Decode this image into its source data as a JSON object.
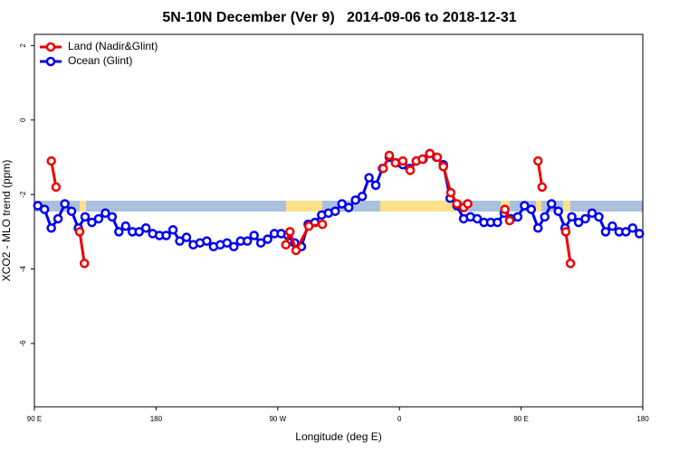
{
  "chart_data": {
    "type": "line",
    "title": "5N-10N December (Ver 9)   2014-09-06 to 2018-12-31",
    "x_label": "Longitude (deg E)",
    "y_label": "XCO2 - MLO trend (ppm)",
    "xlim": [
      90,
      540
    ],
    "xticks": [
      {
        "value": 90,
        "label": "90 E"
      },
      180,
      {
        "value": 270,
        "label": "90 W"
      },
      {
        "value": 360,
        "label": "0"
      },
      {
        "value": 450,
        "label": "90 E"
      },
      {
        "value": 540,
        "label": "180"
      }
    ],
    "ylim": [
      -7.7,
      2.3
    ],
    "yticks": [
      2,
      0,
      -2,
      -4,
      -6
    ],
    "legend": "top-left",
    "series": [
      {
        "name": "Land (Nadir&Glint)",
        "color": "#ee0000",
        "x": [
          102.5,
          106,
          null,
          123.5,
          127,
          null,
          276,
          279,
          283.5,
          293,
          303,
          null,
          348,
          352.5,
          357,
          362.5,
          368,
          372.5,
          377,
          382.5,
          388,
          392.5,
          398,
          402.5,
          407.5,
          410.5,
          null,
          438,
          441.5,
          null,
          462.5,
          465.5,
          null,
          483,
          486.5
        ],
        "values": [
          -1.1,
          -1.8,
          null,
          -3.0,
          -3.85,
          null,
          -3.35,
          -3.0,
          -3.5,
          -2.85,
          -2.8,
          null,
          -1.3,
          -0.95,
          -1.15,
          -1.1,
          -1.35,
          -1.1,
          -1.05,
          -0.9,
          -1.0,
          -1.25,
          -1.95,
          -2.25,
          -2.35,
          -2.25,
          null,
          -2.4,
          -2.7,
          null,
          -1.1,
          -1.8,
          null,
          -3.0,
          -3.85
        ]
      },
      {
        "name": "Ocean (Glint)",
        "color": "#0000ee",
        "x": [
          92.5,
          97.5,
          102.5,
          107.5,
          112.5,
          117.5,
          122.5,
          127.5,
          132.5,
          137.5,
          142.5,
          147.5,
          152.5,
          157.5,
          162.5,
          167.5,
          172.5,
          177.5,
          182.5,
          187.5,
          192.5,
          197.5,
          202.5,
          207.5,
          212.5,
          217.5,
          222.5,
          227.5,
          232.5,
          237.5,
          242.5,
          247.5,
          252.5,
          257.5,
          262.5,
          267.5,
          272.5,
          277.5,
          282.5,
          287.5,
          292.5,
          297.5,
          302.5,
          307.5,
          312.5,
          317.5,
          322.5,
          327.5,
          332.5,
          337.5,
          342.5,
          347.5,
          352.5,
          357.5,
          362.5,
          367.5,
          372.5,
          377.5,
          382.5,
          387.5,
          392.5,
          397.5,
          402.5,
          407.5,
          412.5,
          417.5,
          422.5,
          427.5,
          432.5,
          437.5,
          442.5,
          447.5,
          452.5,
          457.5,
          462.5,
          467.5,
          472.5,
          477.5,
          482.5,
          487.5,
          492.5,
          497.5,
          502.5,
          507.5,
          512.5,
          517.5,
          522.5,
          527.5,
          532.5,
          537.5
        ],
        "values": [
          -2.3,
          -2.4,
          -2.9,
          -2.65,
          -2.25,
          -2.45,
          -2.9,
          -2.6,
          -2.75,
          -2.65,
          -2.5,
          -2.6,
          -3.0,
          -2.85,
          -3.0,
          -3.0,
          -2.9,
          -3.05,
          -3.1,
          -3.1,
          -2.95,
          -3.25,
          -3.15,
          -3.35,
          -3.3,
          -3.25,
          -3.4,
          -3.35,
          -3.3,
          -3.4,
          -3.25,
          -3.25,
          -3.1,
          -3.3,
          -3.2,
          -3.05,
          -3.05,
          -3.1,
          -3.3,
          -3.4,
          -2.8,
          -2.75,
          -2.55,
          -2.5,
          -2.45,
          -2.25,
          -2.35,
          -2.15,
          -2.05,
          -1.55,
          -1.75,
          -1.3,
          -1.0,
          -1.15,
          -1.2,
          -1.3,
          -1.1,
          -1.05,
          -0.9,
          -1.0,
          -1.2,
          -2.1,
          -2.3,
          -2.65,
          -2.6,
          -2.65,
          -2.75,
          -2.75,
          -2.75,
          -2.5,
          -2.65,
          -2.6,
          -2.3,
          -2.4,
          -2.9,
          -2.6,
          -2.25,
          -2.45,
          -2.9,
          -2.6,
          -2.75,
          -2.65,
          -2.5,
          -2.6,
          -3.0,
          -2.85,
          -3.0,
          -3.0,
          -2.9,
          -3.05
        ]
      }
    ]
  }
}
